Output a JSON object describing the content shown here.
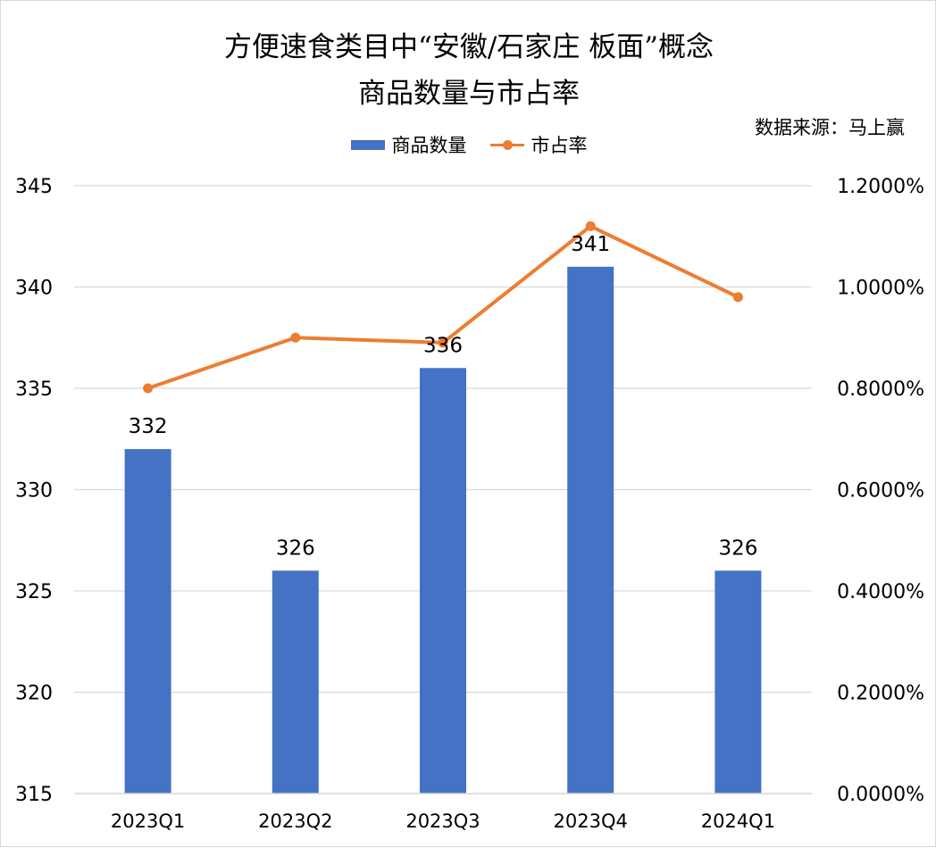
{
  "title_line1": "方便速食类目中“安徽/石家庄 板面”概念",
  "title_line2": "商品数量与市占率",
  "source": "数据来源：马上赢",
  "colors": {
    "bar": "#4472c4",
    "line": "#ed7d31",
    "grid": "#d9d9d9"
  },
  "chart_data": {
    "type": "bar",
    "categories": [
      "2023Q1",
      "2023Q2",
      "2023Q3",
      "2023Q4",
      "2024Q1"
    ],
    "series": [
      {
        "name": "商品数量",
        "type": "bar",
        "axis": "left",
        "values": [
          332,
          326,
          336,
          341,
          326
        ]
      },
      {
        "name": "市占率",
        "type": "line",
        "axis": "right",
        "values": [
          0.008,
          0.009,
          0.0089,
          0.0112,
          0.0098
        ]
      }
    ],
    "y_left": {
      "min": 315,
      "max": 345,
      "ticks": [
        "315",
        "320",
        "325",
        "330",
        "335",
        "340",
        "345"
      ]
    },
    "y_right": {
      "min": 0,
      "max": 0.012,
      "ticks": [
        "0.0000%",
        "0.2000%",
        "0.4000%",
        "0.6000%",
        "0.8000%",
        "1.0000%",
        "1.2000%"
      ]
    },
    "data_labels": [
      "332",
      "326",
      "336",
      "341",
      "326"
    ],
    "grid": true,
    "legend_position": "top"
  }
}
